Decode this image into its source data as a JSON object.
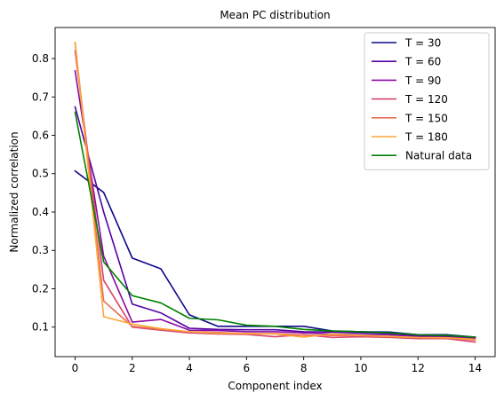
{
  "chart_data": {
    "type": "line",
    "title": "Mean PC distribution",
    "xlabel": "Component index",
    "ylabel": "Normalized correlation",
    "xlim": [
      -0.7,
      14.7
    ],
    "ylim": [
      0.023,
      0.881
    ],
    "xticks": [
      0,
      2,
      4,
      6,
      8,
      10,
      12,
      14
    ],
    "yticks": [
      0.1,
      0.2,
      0.3,
      0.4,
      0.5,
      0.6,
      0.7,
      0.8
    ],
    "grid": false,
    "legend_position": "top-right",
    "x": [
      0,
      1,
      2,
      3,
      4,
      5,
      6,
      7,
      8,
      9,
      10,
      11,
      12,
      13,
      14
    ],
    "series": [
      {
        "name": "T = 30",
        "color": "#0d0887",
        "values": [
          0.507,
          0.451,
          0.28,
          0.252,
          0.132,
          0.102,
          0.102,
          0.102,
          0.102,
          0.09,
          0.088,
          0.087,
          0.08,
          0.08,
          0.074
        ]
      },
      {
        "name": "T = 60",
        "color": "#5302a3",
        "values": [
          0.674,
          0.4,
          0.16,
          0.137,
          0.097,
          0.094,
          0.093,
          0.093,
          0.088,
          0.087,
          0.085,
          0.082,
          0.078,
          0.077,
          0.072
        ]
      },
      {
        "name": "T = 90",
        "color": "#8b0aa5",
        "values": [
          0.768,
          0.285,
          0.113,
          0.12,
          0.092,
          0.091,
          0.088,
          0.088,
          0.085,
          0.082,
          0.08,
          0.078,
          0.075,
          0.074,
          0.07
        ]
      },
      {
        "name": "T = 120",
        "color": "#d6446d",
        "values": [
          0.82,
          0.222,
          0.1,
          0.092,
          0.085,
          0.082,
          0.081,
          0.075,
          0.08,
          0.073,
          0.075,
          0.073,
          0.07,
          0.07,
          0.061
        ]
      },
      {
        "name": "T = 150",
        "color": "#ea6c53",
        "values": [
          0.84,
          0.168,
          0.102,
          0.094,
          0.088,
          0.086,
          0.083,
          0.083,
          0.079,
          0.078,
          0.078,
          0.075,
          0.072,
          0.072,
          0.066
        ]
      },
      {
        "name": "T = 180",
        "color": "#fca636",
        "values": [
          0.842,
          0.127,
          0.108,
          0.096,
          0.088,
          0.084,
          0.083,
          0.082,
          0.074,
          0.082,
          0.078,
          0.076,
          0.073,
          0.072,
          0.068
        ]
      },
      {
        "name": "Natural data",
        "color": "#008000",
        "values": [
          0.66,
          0.27,
          0.182,
          0.163,
          0.123,
          0.119,
          0.105,
          0.102,
          0.094,
          0.09,
          0.088,
          0.085,
          0.08,
          0.078,
          0.074
        ]
      }
    ]
  }
}
